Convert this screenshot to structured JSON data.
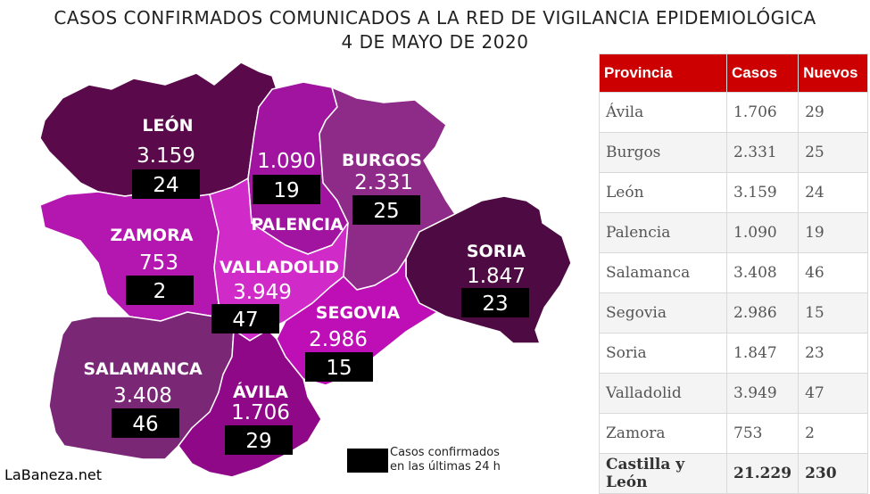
{
  "title_line1": "CASOS CONFIRMADOS COMUNICADOS A LA RED DE VIGILANCIA EPIDEMIOLÓGICA",
  "title_line2": "4 DE MAYO DE 2020",
  "map": {
    "provinces": {
      "leon": {
        "name": "LEÓN",
        "total": "3.159",
        "new": "24",
        "color": "#5a0a4a"
      },
      "palencia": {
        "name": "PALENCIA",
        "total": "1.090",
        "new": "19",
        "color": "#a114a0"
      },
      "burgos": {
        "name": "BURGOS",
        "total": "2.331",
        "new": "25",
        "color": "#8e2a88"
      },
      "zamora": {
        "name": "ZAMORA",
        "total": "753",
        "new": "2",
        "color": "#b416b0"
      },
      "valladolid": {
        "name": "VALLADOLID",
        "total": "3.949",
        "new": "47",
        "color": "#d02ac8"
      },
      "soria": {
        "name": "SORIA",
        "total": "1.847",
        "new": "23",
        "color": "#4e0a42"
      },
      "segovia": {
        "name": "SEGOVIA",
        "total": "2.986",
        "new": "15",
        "color": "#bd0fb5"
      },
      "salamanca": {
        "name": "SALAMANCA",
        "total": "3.408",
        "new": "46",
        "color": "#7a2876"
      },
      "avila": {
        "name": "ÁVILA",
        "total": "1.706",
        "new": "29",
        "color": "#8e0888"
      }
    },
    "legend_line1": "Casos confirmados",
    "legend_line2": "en las últimas 24 h",
    "credit": "LaBaneza.net"
  },
  "table": {
    "headers": [
      "Provincia",
      "Casos",
      "Nuevos"
    ],
    "header_color": "#cc0000",
    "rows": [
      [
        "Ávila",
        "1.706",
        "29"
      ],
      [
        "Burgos",
        "2.331",
        "25"
      ],
      [
        "León",
        "3.159",
        "24"
      ],
      [
        "Palencia",
        "1.090",
        "19"
      ],
      [
        "Salamanca",
        "3.408",
        "46"
      ],
      [
        "Segovia",
        "2.986",
        "15"
      ],
      [
        "Soria",
        "1.847",
        "23"
      ],
      [
        "Valladolid",
        "3.949",
        "47"
      ],
      [
        "Zamora",
        "753",
        "2"
      ]
    ],
    "total": [
      "Castilla y León",
      "21.229",
      "230"
    ]
  }
}
